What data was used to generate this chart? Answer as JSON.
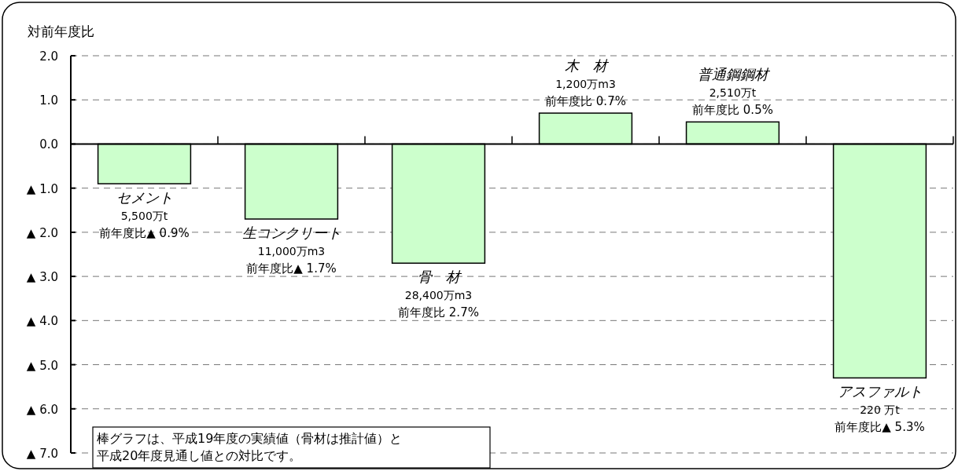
{
  "chart_data": {
    "type": "bar",
    "ylabel": "対前年度比",
    "categories": [
      "セメント",
      "生コンクリート",
      "骨　材",
      "木　材",
      "普通鋼鋼材",
      "アスファルト"
    ],
    "values": [
      -0.9,
      -1.7,
      -2.7,
      0.7,
      0.5,
      -5.3
    ],
    "color": "#ccffcc",
    "ylim": [
      -7,
      2
    ],
    "yticks": [
      {
        "value": 2,
        "label": "2.0"
      },
      {
        "value": 1,
        "label": "1.0"
      },
      {
        "value": 0,
        "label": "0.0"
      },
      {
        "value": -1,
        "label": "▲ 1.0"
      },
      {
        "value": -2,
        "label": "▲ 2.0"
      },
      {
        "value": -3,
        "label": "▲ 3.0"
      },
      {
        "value": -4,
        "label": "▲ 4.0"
      },
      {
        "value": -5,
        "label": "▲ 5.0"
      },
      {
        "value": -6,
        "label": "▲ 6.0"
      },
      {
        "value": -7,
        "label": "▲ 7.0"
      }
    ],
    "grid": "y",
    "annotations": [
      "5,500万t",
      "前年度比▲ 0.9%",
      "11,000万m3",
      "前年度比▲ 1.7%",
      "28,400万m3",
      "前年度比 2.7%",
      "1,200万m3",
      "前年度比 0.7%",
      "2,510万t",
      "前年度比 0.5%",
      "220 万t",
      "前年度比▲ 5.3%",
      "棒グラフは、平成19年度の実績値（骨材は推計値）と平成20年度見通し値との対比です。"
    ]
  }
}
